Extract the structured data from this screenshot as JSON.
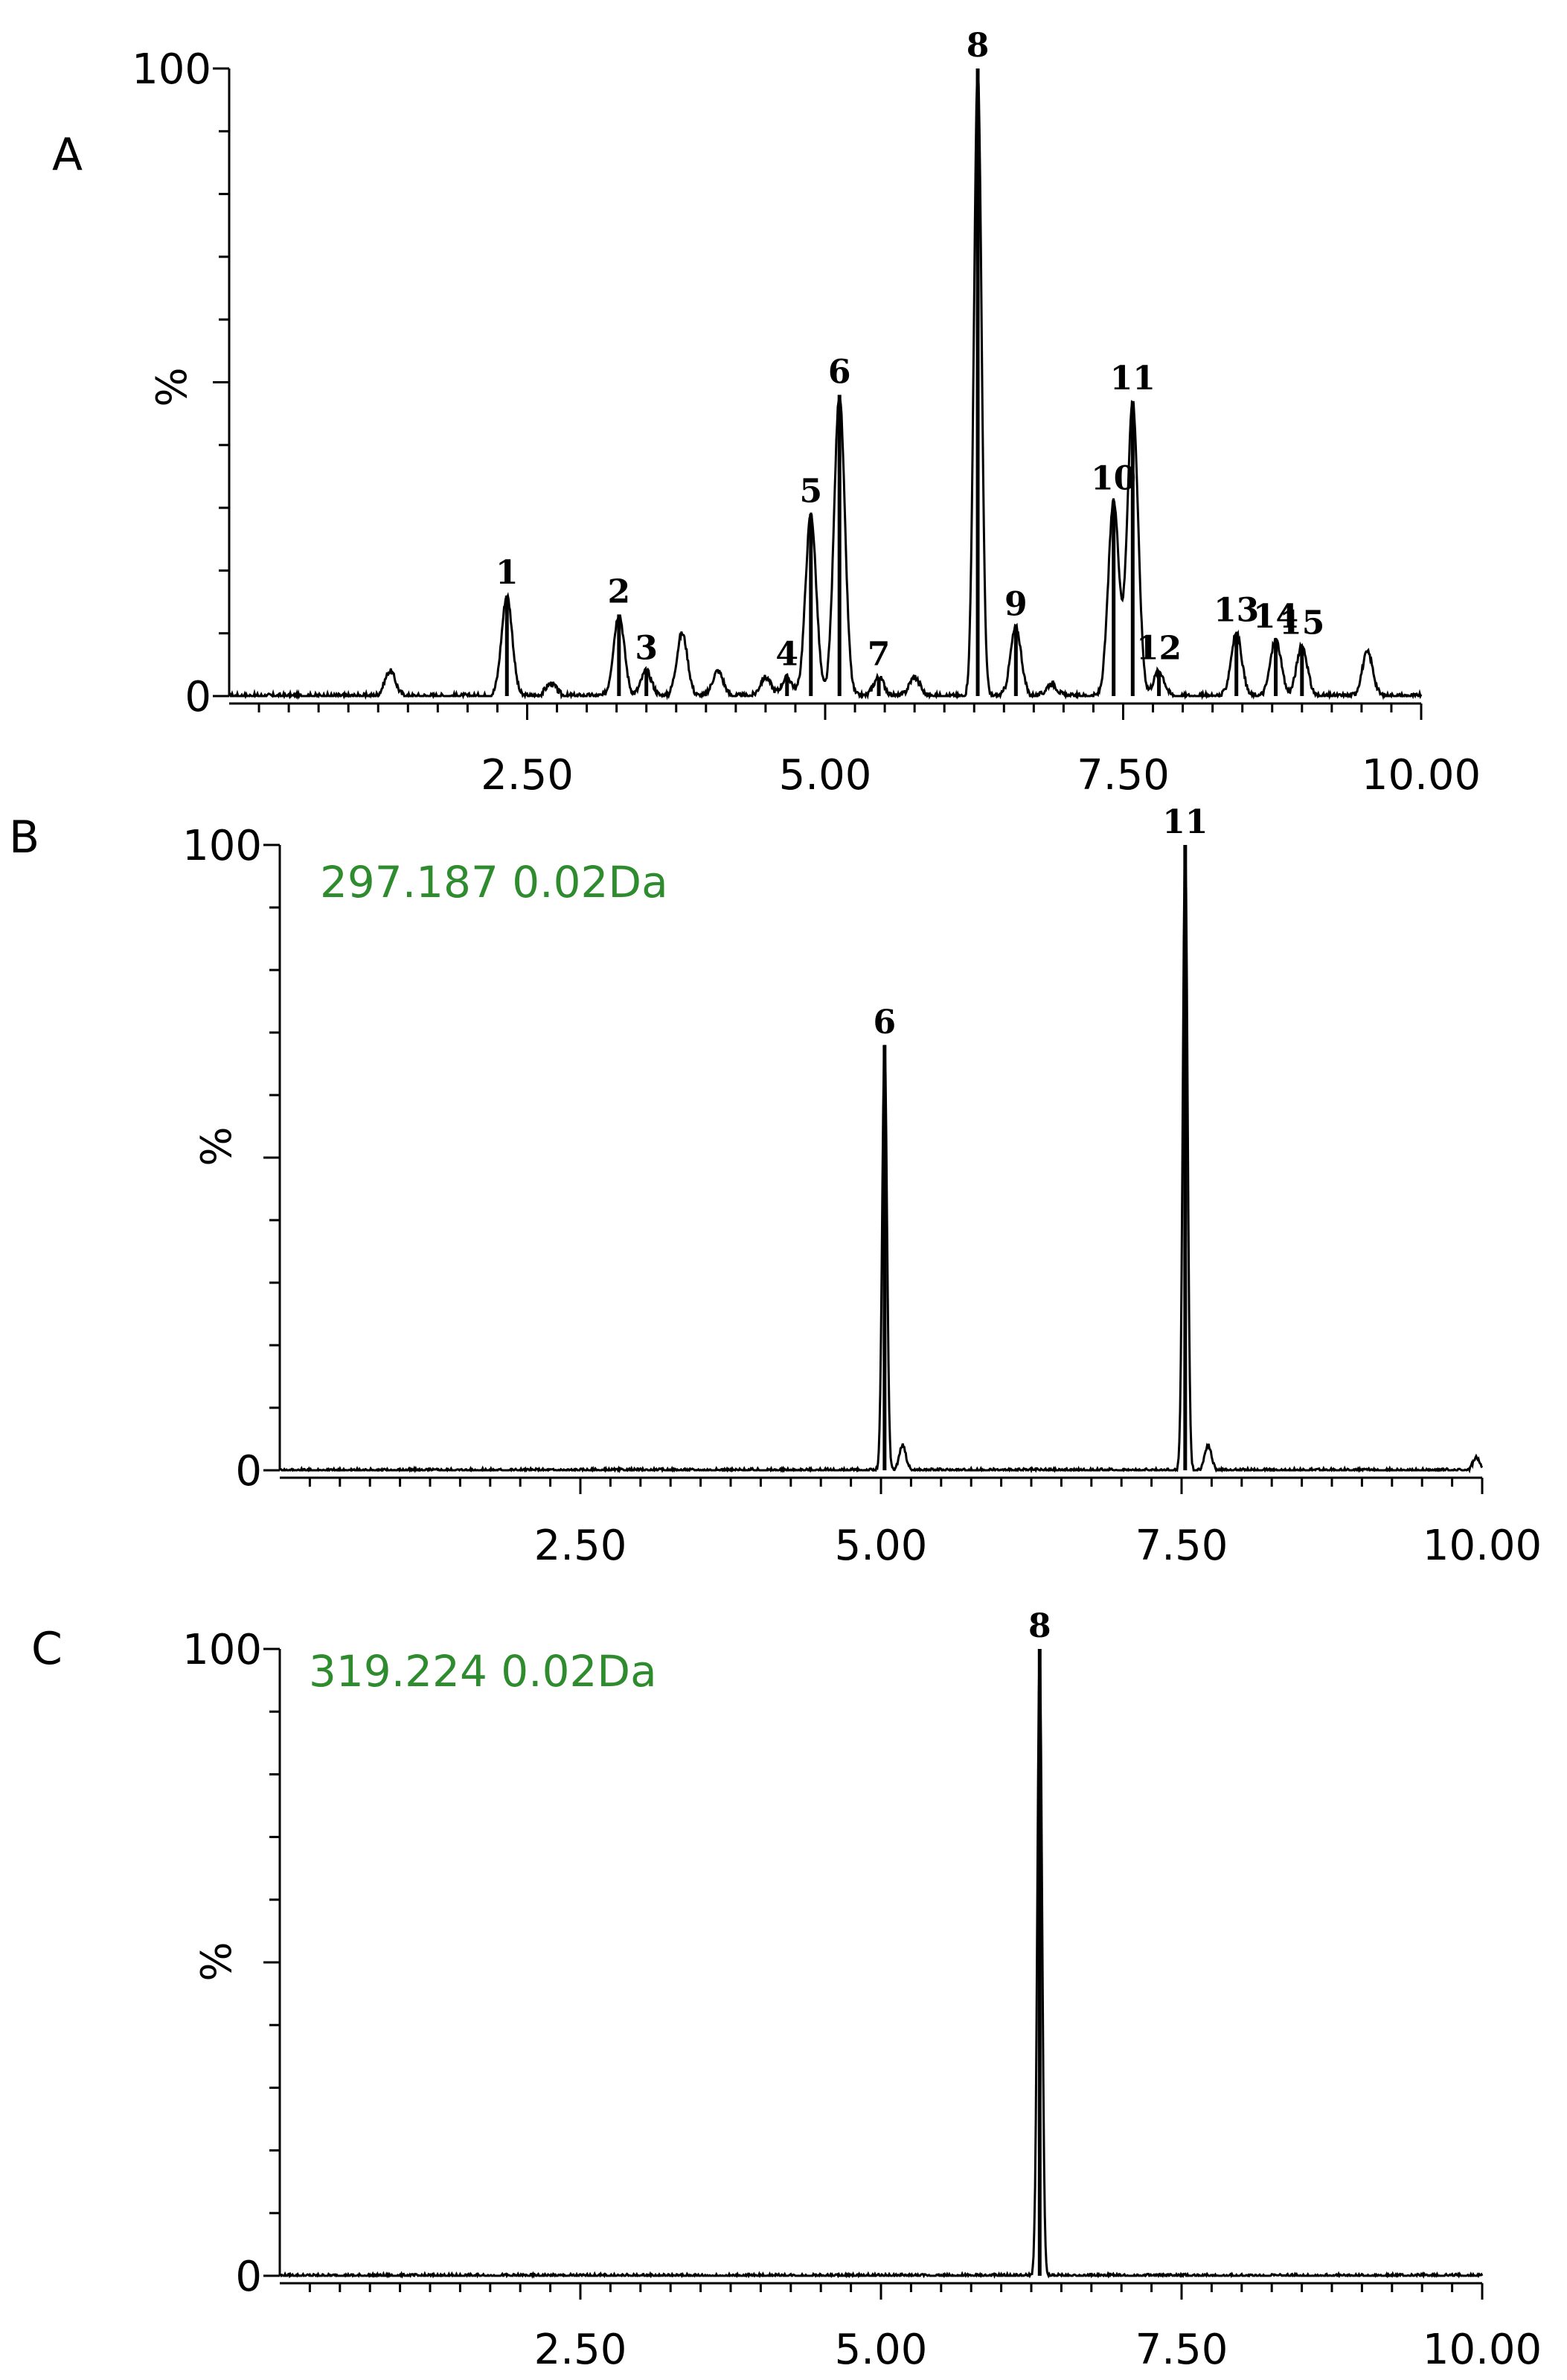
{
  "colors": {
    "axis": "#000000",
    "trace": "#000000",
    "mass_label": "#2e8b2e",
    "background": "#ffffff"
  },
  "chart_data": [
    {
      "type": "line",
      "panel": "A",
      "mass_label": "",
      "title": "",
      "xlabel": "",
      "ylabel": "%",
      "xlim": [
        0,
        10.0
      ],
      "ylim": [
        0,
        100
      ],
      "x_ticks": [
        "2.50",
        "5.00",
        "7.50",
        "10.00"
      ],
      "y_ticks": [
        "0",
        "100"
      ],
      "peaks": [
        {
          "label": "1",
          "x": 2.33,
          "y": 16
        },
        {
          "label": "2",
          "x": 3.27,
          "y": 13
        },
        {
          "label": "3",
          "x": 3.5,
          "y": 4
        },
        {
          "label": "4",
          "x": 4.68,
          "y": 3
        },
        {
          "label": "5",
          "x": 4.88,
          "y": 29
        },
        {
          "label": "6",
          "x": 5.12,
          "y": 48
        },
        {
          "label": "7",
          "x": 5.45,
          "y": 3
        },
        {
          "label": "8",
          "x": 6.28,
          "y": 100
        },
        {
          "label": "9",
          "x": 6.6,
          "y": 11
        },
        {
          "label": "10",
          "x": 7.42,
          "y": 31
        },
        {
          "label": "11",
          "x": 7.58,
          "y": 47
        },
        {
          "label": "12",
          "x": 7.8,
          "y": 4
        },
        {
          "label": "13",
          "x": 8.45,
          "y": 10
        },
        {
          "label": "14",
          "x": 8.78,
          "y": 9
        },
        {
          "label": "15",
          "x": 9.0,
          "y": 8
        }
      ],
      "minor_peaks": [
        {
          "x": 1.35,
          "y": 4
        },
        {
          "x": 2.7,
          "y": 2
        },
        {
          "x": 3.8,
          "y": 10
        },
        {
          "x": 4.1,
          "y": 4
        },
        {
          "x": 4.5,
          "y": 3
        },
        {
          "x": 5.75,
          "y": 3
        },
        {
          "x": 6.9,
          "y": 2
        },
        {
          "x": 9.55,
          "y": 7
        }
      ]
    },
    {
      "type": "line",
      "panel": "B",
      "mass_label": "297.187 0.02Da",
      "title": "",
      "xlabel": "",
      "ylabel": "%",
      "xlim": [
        0,
        10.0
      ],
      "ylim": [
        0,
        100
      ],
      "x_ticks": [
        "2.50",
        "5.00",
        "7.50",
        "10.00"
      ],
      "y_ticks": [
        "0",
        "100"
      ],
      "peaks": [
        {
          "label": "6",
          "x": 5.03,
          "y": 68
        },
        {
          "label": "11",
          "x": 7.53,
          "y": 100
        }
      ],
      "minor_peaks": [
        {
          "x": 5.18,
          "y": 4
        },
        {
          "x": 7.72,
          "y": 4
        },
        {
          "x": 9.95,
          "y": 2
        }
      ]
    },
    {
      "type": "line",
      "panel": "C",
      "mass_label": "319.224 0.02Da",
      "title": "",
      "xlabel": "",
      "ylabel": "%",
      "xlim": [
        0,
        10.0
      ],
      "ylim": [
        0,
        100
      ],
      "x_ticks": [
        "2.50",
        "5.00",
        "7.50",
        "10.00"
      ],
      "y_ticks": [
        "0",
        "100"
      ],
      "peaks": [
        {
          "label": "8",
          "x": 6.32,
          "y": 100
        }
      ],
      "minor_peaks": []
    }
  ]
}
